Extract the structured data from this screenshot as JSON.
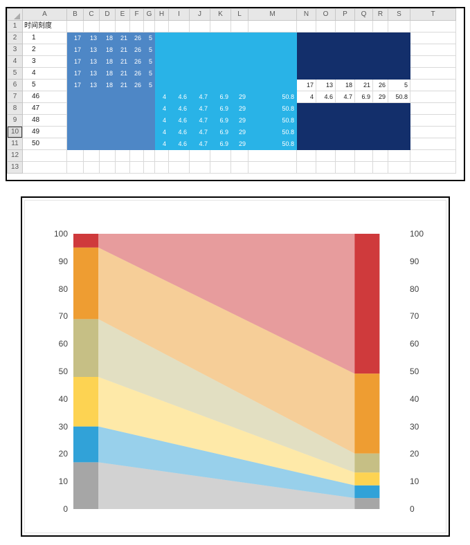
{
  "spreadsheet": {
    "title_cell": "时间刻度",
    "col_headers": [
      "A",
      "B",
      "C",
      "D",
      "E",
      "F",
      "G",
      "H",
      "I",
      "J",
      "K",
      "L",
      "M",
      "N",
      "O",
      "P",
      "Q",
      "R",
      "S",
      "T"
    ],
    "row_headers": [
      "1",
      "2",
      "3",
      "4",
      "5",
      "6",
      "7",
      "8",
      "9",
      "10",
      "11",
      "12",
      "13"
    ],
    "active_row_header": "10",
    "time_column_values": [
      "1",
      "2",
      "3",
      "4",
      "5",
      "46",
      "47",
      "48",
      "49",
      "50"
    ],
    "blocks": [
      {
        "name": "start-series-block",
        "color": "block_blue",
        "cols": [
          "B",
          "C",
          "D",
          "E",
          "F",
          "G"
        ],
        "row_start": 2,
        "row_end": 11,
        "values": [
          "17",
          "13",
          "18",
          "21",
          "26",
          "5"
        ],
        "value_rows": [
          2,
          3,
          4,
          5,
          6
        ]
      },
      {
        "name": "end-series-block",
        "color": "block_cyan",
        "cols": [
          "H",
          "I",
          "J",
          "K",
          "L",
          "M"
        ],
        "row_start": 2,
        "row_end": 11,
        "values": [
          "4",
          "4.6",
          "4.7",
          "6.9",
          "29",
          "50.8"
        ],
        "value_rows": [
          7,
          8,
          9,
          10,
          11
        ]
      },
      {
        "name": "navy-block-upper",
        "color": "block_navy",
        "cols": [
          "N",
          "O",
          "P",
          "Q",
          "R",
          "S"
        ],
        "row_start": 2,
        "row_end": 5,
        "values": null,
        "value_rows": []
      },
      {
        "name": "navy-block-lower",
        "color": "block_navy",
        "cols": [
          "N",
          "O",
          "P",
          "Q",
          "R",
          "S"
        ],
        "row_start": 8,
        "row_end": 11,
        "values": null,
        "value_rows": []
      }
    ],
    "plain_value_rows": [
      {
        "row": 6,
        "cols": [
          "N",
          "O",
          "P",
          "Q",
          "R",
          "S"
        ],
        "values": [
          "17",
          "13",
          "18",
          "21",
          "26",
          "5"
        ]
      },
      {
        "row": 7,
        "cols": [
          "N",
          "O",
          "P",
          "Q",
          "R",
          "S"
        ],
        "values": [
          "4",
          "4.6",
          "4.7",
          "6.9",
          "29",
          "50.8"
        ]
      }
    ]
  },
  "colors": {
    "block_blue": "#4e87c6",
    "block_cyan": "#29b3e7",
    "block_navy": "#132f6b",
    "cell_text_light": "#ffffff",
    "cell_text_dark": "#1a1a1a",
    "grid_line": "#d9d9d9"
  },
  "chart_data": {
    "type": "area",
    "stacked": true,
    "title": "",
    "x": [
      1,
      5,
      46,
      50
    ],
    "series": [
      {
        "name": "band-gray",
        "color": "#a6a6a6",
        "values": [
          17,
          17,
          4,
          4
        ]
      },
      {
        "name": "band-blue",
        "color": "#31a2d8",
        "values": [
          13,
          13,
          4.6,
          4.6
        ]
      },
      {
        "name": "band-yellow",
        "color": "#fdd352",
        "values": [
          18,
          18,
          4.7,
          4.7
        ]
      },
      {
        "name": "band-olive",
        "color": "#c6bf85",
        "values": [
          21,
          21,
          6.9,
          6.9
        ]
      },
      {
        "name": "band-orange",
        "color": "#ee9d32",
        "values": [
          26,
          26,
          29,
          29
        ]
      },
      {
        "name": "band-red",
        "color": "#cf3a3c",
        "values": [
          5,
          5,
          50.8,
          50.8
        ]
      }
    ],
    "transition_opacity": 0.5,
    "ylim": [
      0,
      100
    ],
    "yticks": [
      0,
      10,
      20,
      30,
      40,
      50,
      60,
      70,
      80,
      90,
      100
    ],
    "y_axis_positions": [
      "left",
      "right"
    ],
    "gridlines": false,
    "x_axis_labels_visible": false
  }
}
